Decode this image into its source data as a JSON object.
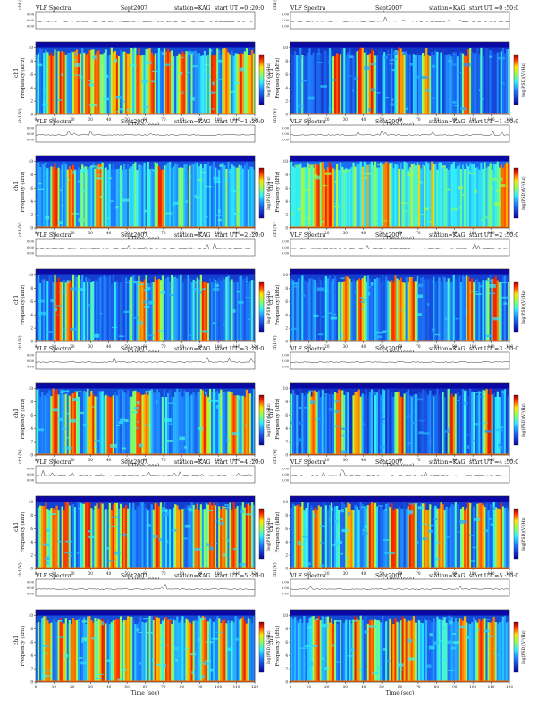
{
  "colors": {
    "spec_low": "#08009e",
    "spec_mid": "#1e7dff",
    "spec_high": "#2ff0ff",
    "spec_peak1": "#8cff5a",
    "spec_peak2": "#ffe600",
    "spec_peak3": "#ff2a00",
    "spec_top": "#8a0000",
    "ink": "#111111"
  },
  "header": {
    "product": "VLF Spectra",
    "period": "Sept2007",
    "station_text": "station=KAG",
    "start_prefix": "start UT ="
  },
  "labels": {
    "ch1_top": "ch1(V)",
    "ch1_side": "ch1",
    "ylabel": "Frequency (kHz)",
    "xlabel": "Time (sec)",
    "colorbar": "log(PSD)(V²/Hz)"
  },
  "chart_data": {
    "type": "heatmap",
    "description_units": {
      "x": "Time (sec)",
      "y": "Frequency (kHz)"
    },
    "xlim": [
      0,
      120
    ],
    "ylim": [
      0,
      10
    ],
    "xticks": [
      "0",
      "10",
      "20",
      "30",
      "40",
      "50",
      "60",
      "70",
      "80",
      "90",
      "100",
      "110",
      "120"
    ],
    "yticks": [
      "0",
      "2",
      "4",
      "6",
      "8",
      "10"
    ],
    "trace_ticks": [
      "0.00",
      "0.00",
      "0.00"
    ],
    "panels": [
      {
        "id": "p00",
        "start_ut": "0 :20:0",
        "busy": 0.55,
        "bg": 0.3,
        "strong_x": [
          8,
          14,
          22,
          28,
          33,
          43,
          50,
          56,
          63,
          72,
          80,
          97,
          104,
          112,
          117
        ]
      },
      {
        "id": "p01",
        "start_ut": "0 :50:0",
        "busy": 0.35,
        "bg": 0.22,
        "strong_x": [
          25,
          38,
          44,
          60,
          74,
          96
        ]
      },
      {
        "id": "p10",
        "start_ut": "1 :20:0",
        "busy": 0.35,
        "bg": 0.34,
        "strong_x": [
          10,
          19,
          34,
          68
        ]
      },
      {
        "id": "p11",
        "start_ut": "1 :50:0",
        "busy": 0.3,
        "bg": 0.45,
        "strong_x": [
          14,
          18,
          21,
          52,
          116,
          118
        ]
      },
      {
        "id": "p20",
        "start_ut": "2 :20:0",
        "busy": 0.4,
        "bg": 0.26,
        "strong_x": [
          12,
          18,
          58,
          66,
          92
        ]
      },
      {
        "id": "p21",
        "start_ut": "2 :50:0",
        "busy": 0.42,
        "bg": 0.26,
        "strong_x": [
          30,
          38,
          56,
          60,
          66,
          98,
          112
        ]
      },
      {
        "id": "p30",
        "start_ut": "3 :20:0",
        "busy": 0.45,
        "bg": 0.3,
        "strong_x": [
          10,
          20,
          30,
          40,
          56,
          60,
          92,
          108,
          115
        ]
      },
      {
        "id": "p31",
        "start_ut": "3 :50:0",
        "busy": 0.5,
        "bg": 0.2,
        "strong_x": [
          12,
          26,
          36,
          60,
          88,
          108
        ]
      },
      {
        "id": "p40",
        "start_ut": "4 :20:0",
        "busy": 0.6,
        "bg": 0.26,
        "strong_x": [
          4,
          10,
          16,
          28,
          34,
          42,
          48,
          66,
          78,
          88,
          96,
          102,
          108,
          116
        ]
      },
      {
        "id": "p41",
        "start_ut": "4 :50:0",
        "busy": 0.6,
        "bg": 0.26,
        "strong_x": [
          4,
          14,
          32,
          44,
          56,
          66,
          74,
          82,
          96,
          104,
          114
        ]
      },
      {
        "id": "p50",
        "start_ut": "5 :20:0",
        "busy": 0.55,
        "bg": 0.32,
        "strong_x": [
          6,
          14,
          20,
          30,
          36,
          44,
          50,
          66,
          72,
          84,
          92,
          102,
          114
        ]
      },
      {
        "id": "p51",
        "start_ut": "5 :50:0",
        "busy": 0.58,
        "bg": 0.3,
        "strong_x": [
          14,
          22,
          36,
          44,
          56,
          62,
          66,
          94,
          104,
          110
        ]
      }
    ]
  }
}
